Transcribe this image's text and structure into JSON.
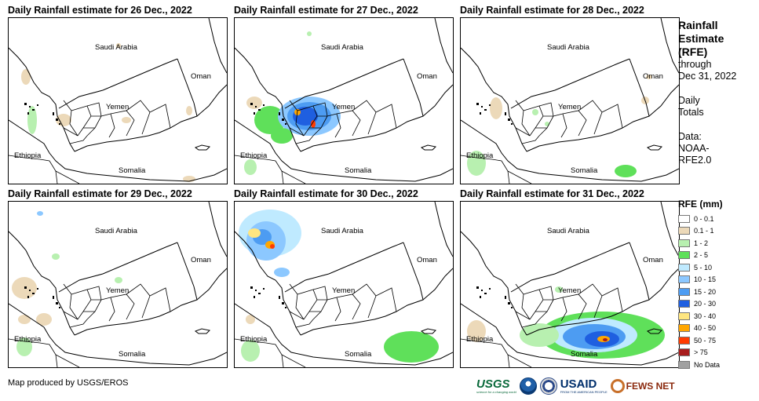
{
  "panels": [
    {
      "title": "Daily Rainfall estimate for 26 Dec., 2022"
    },
    {
      "title": "Daily Rainfall estimate for 27 Dec., 2022"
    },
    {
      "title": "Daily Rainfall estimate for 28 Dec., 2022"
    },
    {
      "title": "Daily Rainfall estimate for 29 Dec., 2022"
    },
    {
      "title": "Daily Rainfall estimate for 30 Dec., 2022"
    },
    {
      "title": "Daily Rainfall estimate for 31 Dec., 2022"
    }
  ],
  "map_labels": {
    "saudi_arabia": "Saudi Arabia",
    "oman": "Oman",
    "yemen": "Yemen",
    "ethiopia": "Ethiopia",
    "somalia": "Somalia"
  },
  "sidebar": {
    "title_line1": "Rainfall",
    "title_line2": "Estimate",
    "title_line3": "(RFE)",
    "through": "through",
    "date": "Dec 31, 2022",
    "daily": "Daily",
    "totals": "Totals",
    "data_label": "Data:",
    "data_source_1": "NOAA-",
    "data_source_2": "RFE2.0"
  },
  "legend": {
    "title": "RFE (mm)",
    "items": [
      {
        "label": "0 - 0.1",
        "color": "#ffffff"
      },
      {
        "label": "0.1 - 1",
        "color": "#ecd9b9"
      },
      {
        "label": "1 - 2",
        "color": "#b8f0b0"
      },
      {
        "label": "2 - 5",
        "color": "#5fe05a"
      },
      {
        "label": "5 - 10",
        "color": "#bfeaff"
      },
      {
        "label": "10 - 15",
        "color": "#8cc8ff"
      },
      {
        "label": "15 - 20",
        "color": "#4d9cf2"
      },
      {
        "label": "20 - 30",
        "color": "#1f5fe0"
      },
      {
        "label": "30 - 40",
        "color": "#ffe680"
      },
      {
        "label": "40 - 50",
        "color": "#ffa600"
      },
      {
        "label": "50 - 75",
        "color": "#ff3b00"
      },
      {
        "label": "> 75",
        "color": "#a81c1c"
      },
      {
        "label": "No Data",
        "color": "#a0a0a0"
      }
    ]
  },
  "footer": {
    "credit": "Map produced by USGS/EROS",
    "usgs": "USGS",
    "usgs_tagline": "science for a changing world",
    "usaid": "USAID",
    "usaid_tagline": "FROM THE AMERICAN PEOPLE",
    "fews": "FEWS NET"
  }
}
